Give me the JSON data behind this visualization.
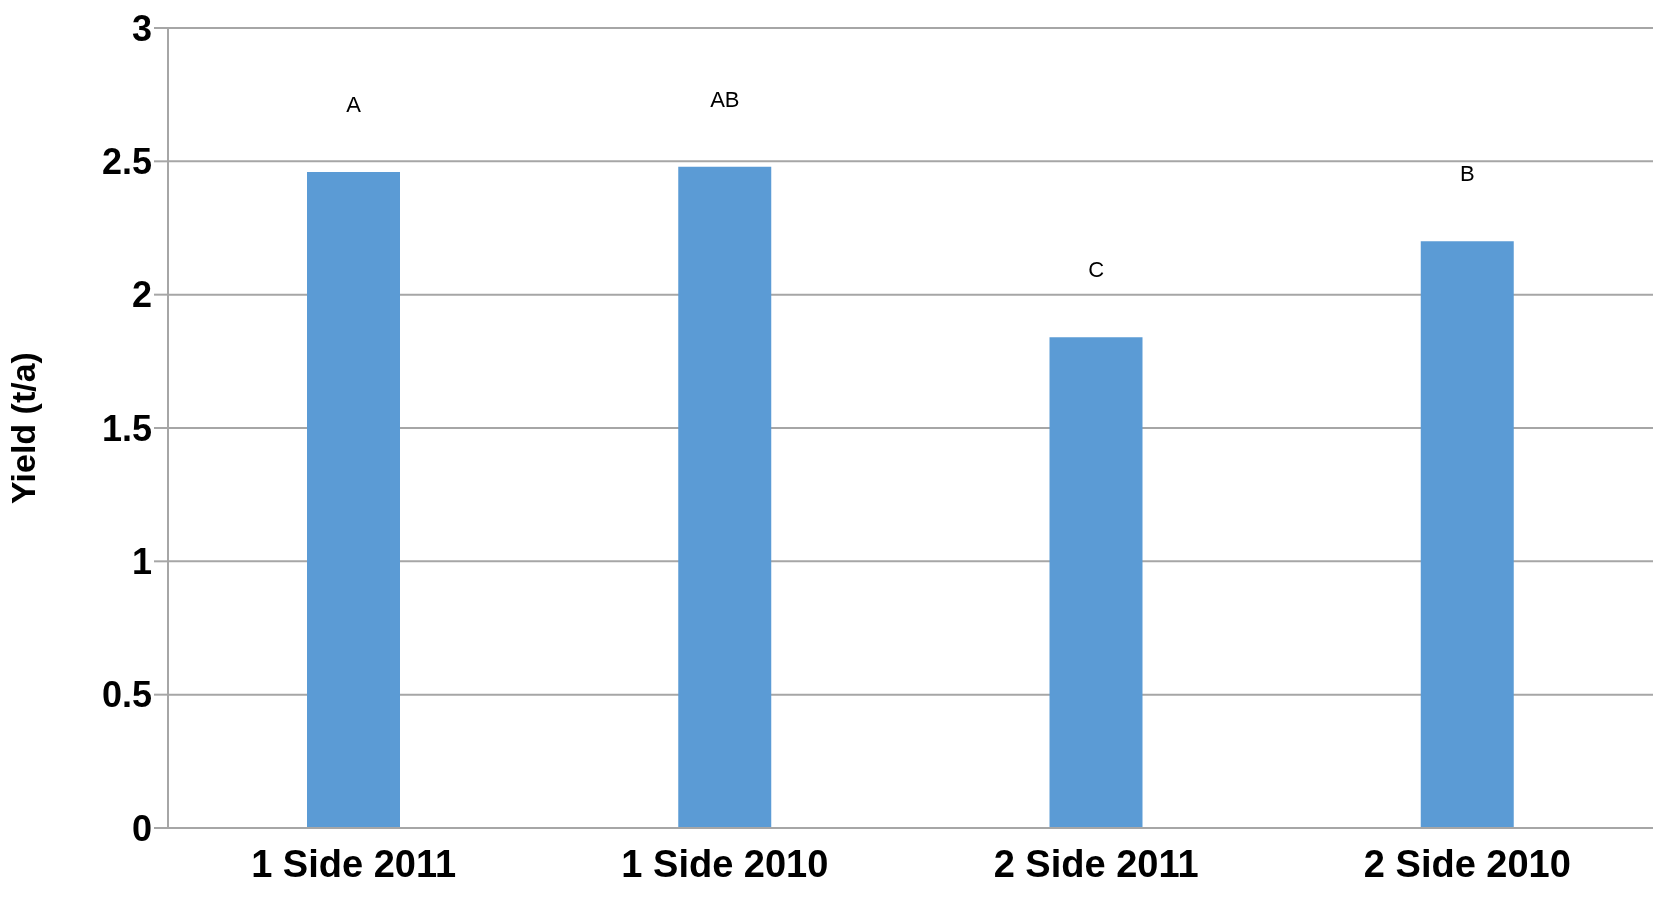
{
  "chart_data": {
    "type": "bar",
    "categories": [
      "1 Side 2011",
      "1 Side 2010",
      "2 Side 2011",
      "2 Side 2010"
    ],
    "values": [
      2.46,
      2.48,
      1.84,
      2.2
    ],
    "color": "#5b9bd5",
    "ylabel": "Yield (t/a)",
    "ylim": [
      0,
      3
    ],
    "yticks": [
      0,
      0.5,
      1,
      1.5,
      2,
      2.5,
      3
    ],
    "grid": "y",
    "annotations": [
      "A",
      "AB",
      "C",
      "B"
    ]
  }
}
